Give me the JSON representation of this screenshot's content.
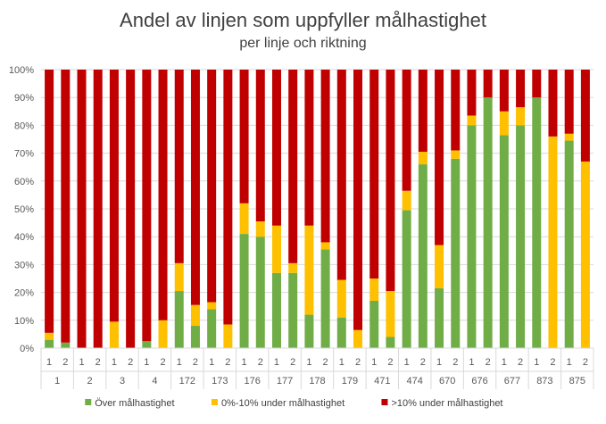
{
  "chart_data": {
    "type": "bar",
    "stacked": true,
    "title": "Andel av linjen som uppfyller målhastighet",
    "subtitle": "per linje och riktning",
    "ylim": [
      0,
      100
    ],
    "y_ticks": [
      "0%",
      "10%",
      "20%",
      "30%",
      "40%",
      "50%",
      "60%",
      "70%",
      "80%",
      "90%",
      "100%"
    ],
    "grid": true,
    "legend_position": "bottom",
    "groups": [
      "1",
      "2",
      "3",
      "4",
      "172",
      "173",
      "176",
      "177",
      "178",
      "179",
      "471",
      "474",
      "670",
      "676",
      "677",
      "873",
      "875"
    ],
    "categories": [
      "1",
      "2",
      "1",
      "2",
      "1",
      "2",
      "1",
      "2",
      "1",
      "2",
      "1",
      "2",
      "1",
      "2",
      "1",
      "2",
      "1",
      "2",
      "1",
      "2",
      "1",
      "2",
      "1",
      "2",
      "1",
      "2",
      "1",
      "2",
      "1",
      "2",
      "1",
      "2",
      "1",
      "2"
    ],
    "series": [
      {
        "name": "Över målhastighet",
        "color": "#70ad47",
        "values": [
          3,
          2,
          0,
          0,
          0,
          0,
          2.5,
          0,
          20.5,
          8,
          14,
          0,
          41,
          40,
          27,
          27,
          12,
          35.5,
          11,
          0,
          17,
          4,
          49.5,
          66,
          21.5,
          68,
          80,
          90,
          76.5,
          80,
          90,
          0,
          74.5,
          0
        ]
      },
      {
        "name": "0%-10% under målhastighet",
        "color": "#ffc000",
        "values": [
          2.5,
          0,
          0,
          0,
          9.5,
          0,
          0,
          10,
          10,
          7.5,
          2.5,
          8.5,
          11,
          5.5,
          17,
          3.5,
          32,
          2.5,
          13.5,
          6.5,
          8,
          16.5,
          7,
          4.5,
          15.5,
          3,
          3.5,
          0,
          8.5,
          6.5,
          0,
          76,
          2.5,
          67
        ]
      },
      {
        "name": ">10% under målhastighet",
        "color": "#c00000",
        "values": [
          94.5,
          98,
          100,
          100,
          90.5,
          100,
          97.5,
          90,
          69.5,
          84.5,
          83.5,
          91.5,
          48,
          54.5,
          56,
          69.5,
          56,
          62,
          75.5,
          93.5,
          75,
          79.5,
          43.5,
          29.5,
          63,
          29,
          16.5,
          10,
          15,
          13.5,
          10,
          24,
          23,
          33
        ]
      }
    ]
  }
}
